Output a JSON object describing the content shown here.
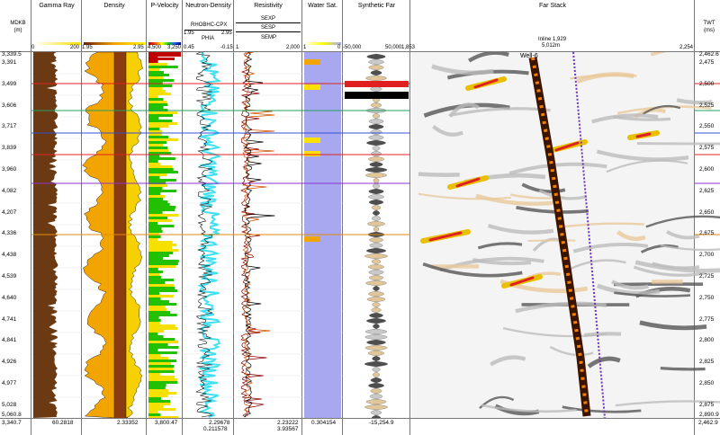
{
  "tracks": {
    "depth_header": "MDKB\n(m)",
    "gamma_ray": {
      "title": "Gamma Ray",
      "scale_min": "0",
      "scale_max": "200",
      "footer": "60.2818"
    },
    "density": {
      "title": "Density",
      "scale_min": "1.95",
      "scale_max": "2.95",
      "footer": "2.33352"
    },
    "p_velocity": {
      "title": "P-Velocity",
      "scale_min": "4,500",
      "scale_max": "3,250",
      "footer": "3,800.47"
    },
    "neutron_density": {
      "title": "Neutron-Density",
      "curve1": "RHOBHC-CPX",
      "c1_min": "1.95",
      "c1_max": "2.95",
      "curve2": "PHIA",
      "c2_min": "0.45",
      "c2_max": "-0.15",
      "footer1": "2.29678",
      "footer2": "0.211578"
    },
    "resistivity": {
      "title": "Resistivity",
      "curve1": "SEXP",
      "curve2": "SESP",
      "curve3": "SEMP",
      "scale_min": "1",
      "scale_max": "2,000",
      "footer1": "2.23222",
      "footer2": "3.93567"
    },
    "water_sat": {
      "title": "Water Sat.",
      "scale_min": "1",
      "scale_max": "0",
      "footer": "0.304154"
    },
    "synthetic_far": {
      "title": "Synthetic Far",
      "scale_min": "-50,000",
      "scale_max": "50,000",
      "footer": "-15,254.9"
    },
    "far_stack": {
      "title": "Far Stack",
      "inline": "Inline 1,929",
      "x_min": "1,853",
      "x_mid": "5,012m",
      "x_max": "2,254",
      "well": "Well-6"
    },
    "twt_header": "TWT\n(ms)"
  },
  "depth_top": "3,339.5",
  "depth_bottom": "5,060.8",
  "depth_footer": "3,340.7",
  "depth_labels": [
    "3,391",
    "3,499",
    "3,606",
    "3,717",
    "3,839",
    "3,960",
    "4,082",
    "4,207",
    "4,336",
    "4,438",
    "4,539",
    "4,640",
    "4,741",
    "4,841",
    "4,926",
    "4,977",
    "5,028"
  ],
  "twt_top": "2,462.6",
  "twt_bottom": "2,890.9",
  "twt_footer": "2,462.9",
  "twt_labels": [
    "2,475",
    "2,500",
    "2,525",
    "2,550",
    "2,575",
    "2,600",
    "2,625",
    "2,650",
    "2,675",
    "2,700",
    "2,725",
    "2,750",
    "2,775",
    "2,800",
    "2,825",
    "2,850",
    "2,875"
  ],
  "colors": {
    "gamma": "#6b3a13",
    "density_fill": "#f2a400",
    "pvel_green": "#22c000",
    "neutron_cyan": "#40e0f0",
    "water": "#a8a8f0",
    "marker_red": "#e02020",
    "marker_green": "#20a060",
    "marker_blue": "#3050d0",
    "marker_purple": "#9030d0",
    "marker_orange": "#e08a10"
  }
}
